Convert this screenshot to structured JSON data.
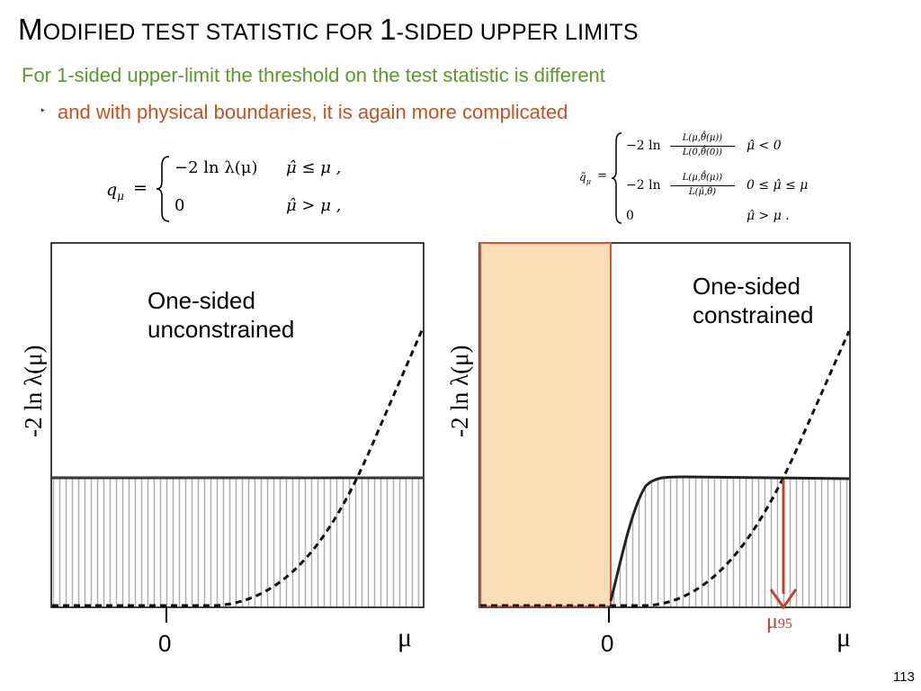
{
  "slide": {
    "title_parts": [
      "M",
      "ODIFIED TEST STATISTIC FOR ",
      "1",
      "-SIDED UPPER LIMITS"
    ],
    "subtitle": "For 1-sided upper-limit the threshold on the test statistic is different",
    "bullet_marker": "‣",
    "bullet": "and with physical boundaries, it is again more complicated",
    "page_number": "113"
  },
  "formulas": {
    "left": {
      "lhs": "q",
      "lhs_sub": "μ",
      "equals": "=",
      "case1_expr": "−2 ln λ(μ)",
      "case1_cond": "μ̂ ≤ μ ,",
      "case2_expr": "0",
      "case2_cond": "μ̂ > μ ,"
    },
    "right": {
      "lhs": "q̃",
      "lhs_sub": "μ",
      "equals": "=",
      "case1_prefix": "−2 ln",
      "case1_num": "L(μ,θ̂̂(μ))",
      "case1_den": "L(0,θ̂̂(0))",
      "case1_cond": "μ̂ < 0",
      "case2_prefix": "−2 ln",
      "case2_num": "L(μ,θ̂̂(μ))",
      "case2_den": "L(μ̂,θ̂)",
      "case2_cond": "0 ≤ μ̂ ≤ μ",
      "case3_expr": "0",
      "case3_cond": "μ̂ > μ ."
    }
  },
  "plots": {
    "left": {
      "label_line1": "One-sided",
      "label_line2": "unconstrained",
      "ylabel": "-2 ln λ(μ)",
      "xtick_zero": "0",
      "xlabel": "μ"
    },
    "right": {
      "label_line1": "One-sided",
      "label_line2": "constrained",
      "ylabel": "-2 ln λ(μ)",
      "xtick_zero": "0",
      "xlabel": "μ",
      "mu95_base": "μ",
      "mu95_sub": "95"
    }
  },
  "colors": {
    "subtitle_green": "#5a9a2a",
    "bullet_orange": "#c4531f",
    "shaded_region": "#f8ddb5",
    "region_border": "#d9552a",
    "arrow_red": "#c4402a",
    "hatch_gray": "#b0b0b0"
  }
}
